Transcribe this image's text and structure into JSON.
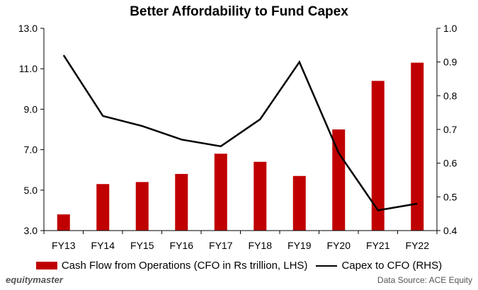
{
  "chart_data": {
    "type": "bar",
    "title": "Better Affordability to Fund Capex",
    "categories": [
      "FY13",
      "FY14",
      "FY15",
      "FY16",
      "FY17",
      "FY18",
      "FY19",
      "FY20",
      "FY21",
      "FY22"
    ],
    "series": [
      {
        "name": "Cash Flow from Operations (CFO in Rs trillion, LHS)",
        "type": "bar",
        "axis": "left",
        "color": "#c00000",
        "values": [
          3.8,
          5.3,
          5.4,
          5.8,
          6.8,
          6.4,
          5.7,
          8.0,
          10.4,
          11.3
        ]
      },
      {
        "name": "Capex to CFO (RHS)",
        "type": "line",
        "axis": "right",
        "color": "#000000",
        "values": [
          0.92,
          0.74,
          0.71,
          0.67,
          0.65,
          0.73,
          0.9,
          0.63,
          0.46,
          0.48
        ]
      }
    ],
    "y_left": {
      "min": 3.0,
      "max": 13.0,
      "ticks": [
        "3.0",
        "5.0",
        "7.0",
        "9.0",
        "11.0",
        "13.0"
      ]
    },
    "y_right": {
      "min": 0.4,
      "max": 1.0,
      "ticks": [
        "0.4",
        "0.5",
        "0.6",
        "0.7",
        "0.8",
        "0.9",
        "1.0"
      ]
    },
    "grid": false,
    "legend_position": "bottom"
  },
  "footer": {
    "brand": "equitymaster",
    "source": "Data Source: ACE Equity"
  }
}
